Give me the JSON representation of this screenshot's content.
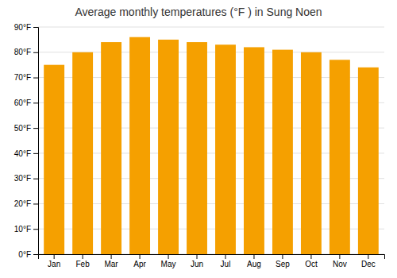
{
  "chart_data": {
    "type": "bar",
    "title": "Average monthly temperatures (°F ) in Sung Noen",
    "categories": [
      "Jan",
      "Feb",
      "Mar",
      "Apr",
      "May",
      "Jun",
      "Jul",
      "Aug",
      "Sep",
      "Oct",
      "Nov",
      "Dec"
    ],
    "values": [
      75,
      80,
      84,
      86,
      85,
      84,
      83,
      82,
      81,
      80,
      77,
      74
    ],
    "color": "#F5A000",
    "ylim": [
      0,
      90
    ],
    "yticks": [
      {
        "value": 0,
        "label": "0°F"
      },
      {
        "value": 10,
        "label": "10°F"
      },
      {
        "value": 20,
        "label": "20°F"
      },
      {
        "value": 30,
        "label": "30°F"
      },
      {
        "value": 40,
        "label": "40°F"
      },
      {
        "value": 50,
        "label": "50°F"
      },
      {
        "value": 60,
        "label": "60°F"
      },
      {
        "value": 70,
        "label": "70°F"
      },
      {
        "value": 80,
        "label": "80°F"
      },
      {
        "value": 90,
        "label": "90°F"
      }
    ],
    "grid": true
  }
}
